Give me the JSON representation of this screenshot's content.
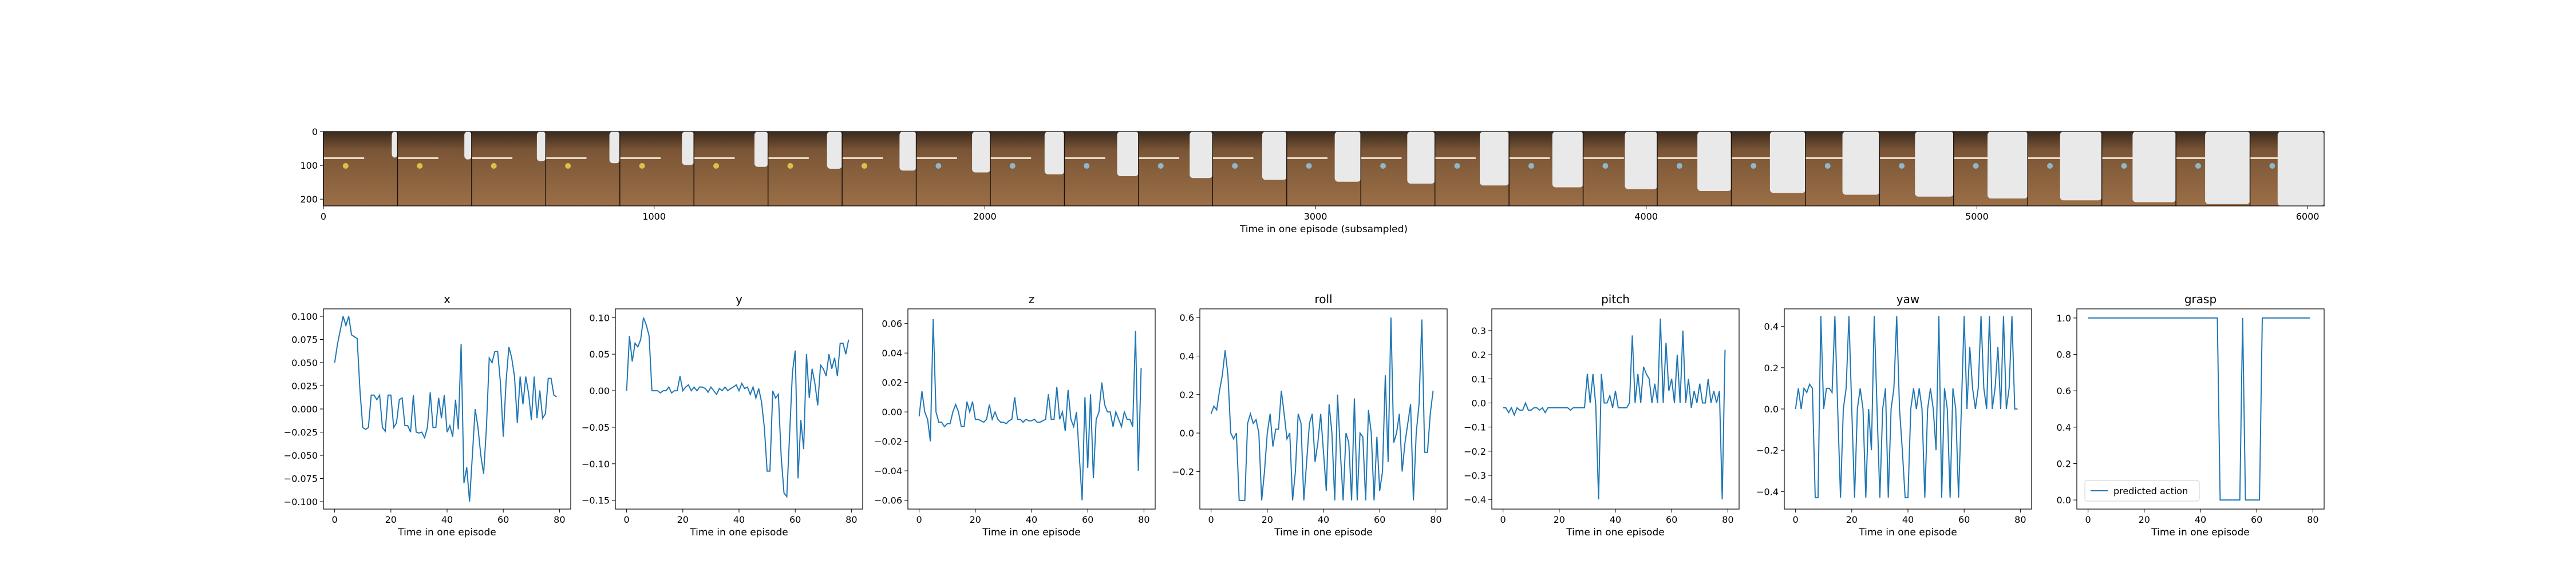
{
  "colors": {
    "line": "#1f77b4",
    "frame": "#000000",
    "background": "#ffffff"
  },
  "filmstrip": {
    "xlabel": "Time in one episode (subsampled)",
    "xlim": [
      0,
      6050
    ],
    "ylim": [
      220,
      0
    ],
    "xticks": [
      0,
      1000,
      2000,
      3000,
      4000,
      5000,
      6000
    ],
    "yticks": [
      0,
      100,
      200
    ],
    "frame_count": 27,
    "description_icon": "robot-arm-camera-frames"
  },
  "chart_data": [
    {
      "type": "line",
      "title": "x",
      "xlabel": "Time in one episode",
      "ylabel": "",
      "xlim": [
        -4,
        84
      ],
      "ylim": [
        -0.108,
        0.108
      ],
      "xticks": [
        0,
        20,
        40,
        60,
        80
      ],
      "yticks": [
        -0.1,
        -0.075,
        -0.05,
        -0.025,
        0.0,
        0.025,
        0.05,
        0.075,
        0.1
      ],
      "ytick_labels": [
        "−0.100",
        "−0.075",
        "−0.050",
        "−0.025",
        "0.000",
        "0.025",
        "0.050",
        "0.075",
        "0.100"
      ],
      "series": [
        {
          "x_start": 0,
          "values": [
            0.05,
            0.07,
            0.085,
            0.1,
            0.09,
            0.1,
            0.08,
            0.078,
            0.076,
            0.02,
            -0.02,
            -0.022,
            -0.02,
            0.015,
            0.015,
            0.01,
            0.015,
            -0.02,
            -0.024,
            0.015,
            0.015,
            -0.02,
            -0.015,
            0.01,
            0.012,
            -0.018,
            -0.018,
            -0.025,
            0.015,
            -0.025,
            -0.026,
            -0.025,
            -0.031,
            -0.02,
            0.018,
            -0.02,
            -0.02,
            0.012,
            -0.01,
            0.015,
            -0.025,
            -0.018,
            -0.03,
            0.01,
            -0.022,
            0.07,
            -0.08,
            -0.063,
            -0.1,
            -0.05,
            0.0,
            -0.02,
            -0.05,
            -0.07,
            -0.02,
            0.055,
            0.05,
            0.062,
            0.062,
            0.028,
            -0.03,
            0.03,
            0.067,
            0.055,
            0.035,
            -0.015,
            0.035,
            0.005,
            0.035,
            0.017,
            -0.012,
            0.035,
            -0.01,
            0.02,
            -0.01,
            -0.005,
            0.033,
            0.033,
            0.015,
            0.013
          ]
        }
      ]
    },
    {
      "type": "line",
      "title": "y",
      "xlabel": "Time in one episode",
      "ylabel": "",
      "xlim": [
        -4,
        84
      ],
      "ylim": [
        -0.162,
        0.112
      ],
      "xticks": [
        0,
        20,
        40,
        60,
        80
      ],
      "yticks": [
        -0.15,
        -0.1,
        -0.05,
        0.0,
        0.05,
        0.1
      ],
      "ytick_labels": [
        "−0.15",
        "−0.10",
        "−0.05",
        "0.00",
        "0.05",
        "0.10"
      ],
      "series": [
        {
          "x_start": 0,
          "values": [
            0.0,
            0.075,
            0.04,
            0.065,
            0.06,
            0.07,
            0.1,
            0.09,
            0.075,
            0.0,
            0.0,
            0.0,
            -0.003,
            0.0,
            0.0,
            0.005,
            -0.003,
            0.0,
            0.0,
            0.02,
            0.0,
            0.005,
            0.008,
            0.0,
            0.005,
            0.0,
            0.005,
            0.005,
            0.003,
            -0.002,
            0.005,
            0.0,
            -0.005,
            0.003,
            0.0,
            0.005,
            0.0,
            0.003,
            0.005,
            0.008,
            0.0,
            0.01,
            0.003,
            0.005,
            -0.005,
            0.005,
            -0.01,
            0.003,
            -0.015,
            -0.05,
            -0.11,
            -0.11,
            0.0,
            -0.01,
            -0.005,
            -0.09,
            -0.14,
            -0.145,
            -0.06,
            0.025,
            0.055,
            -0.12,
            -0.04,
            -0.08,
            0.05,
            -0.01,
            0.03,
            0.01,
            -0.02,
            0.035,
            0.03,
            0.02,
            0.05,
            0.03,
            0.045,
            0.02,
            0.065,
            0.065,
            0.05,
            0.07
          ]
        }
      ]
    },
    {
      "type": "line",
      "title": "z",
      "xlabel": "Time in one episode",
      "ylabel": "",
      "xlim": [
        -4,
        84
      ],
      "ylim": [
        -0.066,
        0.07
      ],
      "xticks": [
        0,
        20,
        40,
        60,
        80
      ],
      "yticks": [
        -0.06,
        -0.04,
        -0.02,
        0.0,
        0.02,
        0.04,
        0.06
      ],
      "ytick_labels": [
        "−0.06",
        "−0.04",
        "−0.02",
        "0.00",
        "0.02",
        "0.04",
        "0.06"
      ],
      "series": [
        {
          "x_start": 0,
          "values": [
            -0.003,
            0.014,
            0.0,
            -0.005,
            -0.02,
            0.063,
            0.0,
            -0.007,
            -0.007,
            -0.01,
            -0.008,
            -0.008,
            0.0,
            0.005,
            0.0,
            -0.01,
            -0.01,
            0.007,
            0.0,
            0.007,
            -0.005,
            -0.005,
            -0.006,
            -0.007,
            -0.005,
            0.005,
            -0.005,
            0.0,
            -0.005,
            -0.007,
            -0.007,
            -0.008,
            -0.006,
            -0.005,
            0.01,
            -0.005,
            -0.005,
            -0.007,
            -0.005,
            -0.006,
            -0.006,
            -0.005,
            -0.007,
            -0.007,
            -0.006,
            -0.005,
            0.012,
            -0.005,
            -0.005,
            0.017,
            -0.005,
            0.0,
            -0.013,
            0.015,
            -0.005,
            -0.01,
            0.0,
            -0.03,
            -0.06,
            0.01,
            -0.038,
            0.012,
            -0.045,
            -0.005,
            0.0,
            0.02,
            0.005,
            0.0,
            0.0,
            -0.01,
            0.0,
            -0.005,
            -0.01,
            0.0,
            -0.005,
            -0.005,
            -0.01,
            0.055,
            -0.04,
            0.03
          ]
        }
      ]
    },
    {
      "type": "line",
      "title": "roll",
      "xlabel": "Time in one episode",
      "ylabel": "",
      "xlim": [
        -4,
        84
      ],
      "ylim": [
        -0.395,
        0.645
      ],
      "xticks": [
        0,
        20,
        40,
        60,
        80
      ],
      "yticks": [
        -0.2,
        0.0,
        0.2,
        0.4,
        0.6
      ],
      "ytick_labels": [
        "−0.2",
        "0.0",
        "0.2",
        "0.4",
        "0.6"
      ],
      "series": [
        {
          "x_start": 0,
          "values": [
            0.1,
            0.14,
            0.12,
            0.22,
            0.3,
            0.43,
            0.3,
            0.0,
            -0.03,
            0.0,
            -0.35,
            -0.35,
            -0.35,
            0.05,
            0.1,
            0.05,
            0.07,
            0.0,
            -0.35,
            -0.2,
            0.0,
            0.1,
            -0.07,
            0.02,
            0.02,
            0.22,
            0.1,
            -0.03,
            0.0,
            -0.35,
            -0.2,
            0.1,
            0.05,
            -0.35,
            -0.15,
            0.05,
            0.1,
            -0.15,
            -0.05,
            0.1,
            -0.1,
            -0.3,
            0.15,
            0.0,
            -0.35,
            0.2,
            -0.1,
            -0.35,
            0.0,
            -0.05,
            -0.35,
            0.18,
            -0.35,
            0.0,
            -0.02,
            -0.35,
            0.12,
            0.0,
            -0.35,
            -0.02,
            -0.3,
            -0.2,
            0.3,
            -0.15,
            0.6,
            -0.05,
            0.0,
            0.1,
            -0.2,
            -0.05,
            0.05,
            0.15,
            -0.35,
            0.0,
            0.15,
            0.59,
            -0.1,
            -0.1,
            0.1,
            0.22
          ]
        }
      ]
    },
    {
      "type": "line",
      "title": "pitch",
      "xlabel": "Time in one episode",
      "ylabel": "",
      "xlim": [
        -4,
        84
      ],
      "ylim": [
        -0.44,
        0.39
      ],
      "xticks": [
        0,
        20,
        40,
        60,
        80
      ],
      "yticks": [
        -0.4,
        -0.3,
        -0.2,
        -0.1,
        0.0,
        0.1,
        0.2,
        0.3
      ],
      "ytick_labels": [
        "−0.4",
        "−0.3",
        "−0.2",
        "−0.1",
        "0.0",
        "0.1",
        "0.2",
        "0.3"
      ],
      "series": [
        {
          "x_start": 0,
          "values": [
            -0.02,
            -0.02,
            -0.04,
            -0.02,
            -0.05,
            -0.02,
            -0.03,
            -0.03,
            0.0,
            -0.03,
            -0.03,
            -0.02,
            -0.02,
            -0.03,
            -0.02,
            -0.04,
            -0.02,
            -0.02,
            -0.02,
            -0.02,
            -0.02,
            -0.02,
            -0.02,
            -0.02,
            -0.03,
            -0.02,
            -0.02,
            -0.02,
            -0.02,
            -0.02,
            0.12,
            0.0,
            0.12,
            -0.01,
            -0.4,
            0.12,
            0.0,
            0.0,
            0.03,
            -0.02,
            0.05,
            -0.02,
            -0.02,
            -0.02,
            -0.02,
            0.0,
            0.28,
            0.0,
            0.12,
            0.0,
            0.15,
            0.12,
            0.1,
            0.0,
            0.08,
            0.0,
            0.35,
            0.0,
            0.25,
            0.05,
            0.1,
            0.0,
            0.2,
            0.0,
            0.3,
            0.0,
            0.1,
            -0.02,
            0.05,
            0.0,
            0.08,
            0.0,
            0.0,
            0.1,
            0.0,
            0.05,
            0.0,
            0.05,
            -0.4,
            0.22
          ]
        }
      ]
    },
    {
      "type": "line",
      "title": "yaw",
      "xlabel": "Time in one episode",
      "ylabel": "",
      "xlim": [
        -4,
        84
      ],
      "ylim": [
        -0.485,
        0.485
      ],
      "xticks": [
        0,
        20,
        40,
        60,
        80
      ],
      "yticks": [
        -0.4,
        -0.2,
        0.0,
        0.2,
        0.4
      ],
      "ytick_labels": [
        "−0.4",
        "−0.2",
        "0.0",
        "0.2",
        "0.4"
      ],
      "series": [
        {
          "x_start": 0,
          "values": [
            0.0,
            0.1,
            0.0,
            0.1,
            0.08,
            0.12,
            0.1,
            -0.43,
            -0.43,
            0.45,
            0.0,
            0.1,
            0.1,
            0.08,
            0.45,
            0.0,
            -0.43,
            0.0,
            0.1,
            0.45,
            0.0,
            -0.43,
            0.0,
            0.1,
            0.0,
            -0.43,
            0.0,
            -0.2,
            0.45,
            0.0,
            -0.43,
            0.0,
            0.1,
            -0.43,
            0.0,
            0.1,
            0.45,
            0.0,
            -0.2,
            -0.43,
            -0.43,
            0.0,
            0.1,
            0.0,
            0.1,
            0.0,
            -0.43,
            0.0,
            0.1,
            0.0,
            -0.2,
            0.45,
            -0.43,
            0.1,
            0.0,
            -0.43,
            0.1,
            0.0,
            -0.43,
            0.0,
            0.45,
            0.0,
            0.3,
            0.1,
            0.0,
            0.1,
            0.45,
            0.1,
            0.0,
            0.45,
            0.0,
            0.1,
            0.3,
            0.0,
            0.45,
            0.0,
            0.1,
            0.45,
            0.0,
            0.0
          ]
        }
      ]
    },
    {
      "type": "line",
      "title": "grasp",
      "xlabel": "Time in one episode",
      "ylabel": "",
      "xlim": [
        -4,
        84
      ],
      "ylim": [
        -0.05,
        1.05
      ],
      "xticks": [
        0,
        20,
        40,
        60,
        80
      ],
      "yticks": [
        0.0,
        0.2,
        0.4,
        0.6,
        0.8,
        1.0
      ],
      "ytick_labels": [
        "0.0",
        "0.2",
        "0.4",
        "0.6",
        "0.8",
        "1.0"
      ],
      "legend": {
        "label": "predicted action",
        "placement": "lower-left"
      },
      "series": [
        {
          "name": "predicted action",
          "x_start": 0,
          "values": [
            1,
            1,
            1,
            1,
            1,
            1,
            1,
            1,
            1,
            1,
            1,
            1,
            1,
            1,
            1,
            1,
            1,
            1,
            1,
            1,
            1,
            1,
            1,
            1,
            1,
            1,
            1,
            1,
            1,
            1,
            1,
            1,
            1,
            1,
            1,
            1,
            1,
            1,
            1,
            1,
            1,
            1,
            1,
            1,
            1,
            1,
            1,
            0,
            0,
            0,
            0,
            0,
            0,
            0,
            0,
            1,
            0,
            0,
            0,
            0,
            0,
            0,
            1,
            1,
            1,
            1,
            1,
            1,
            1,
            1,
            1,
            1,
            1,
            1,
            1,
            1,
            1,
            1,
            1,
            1
          ]
        }
      ]
    }
  ]
}
